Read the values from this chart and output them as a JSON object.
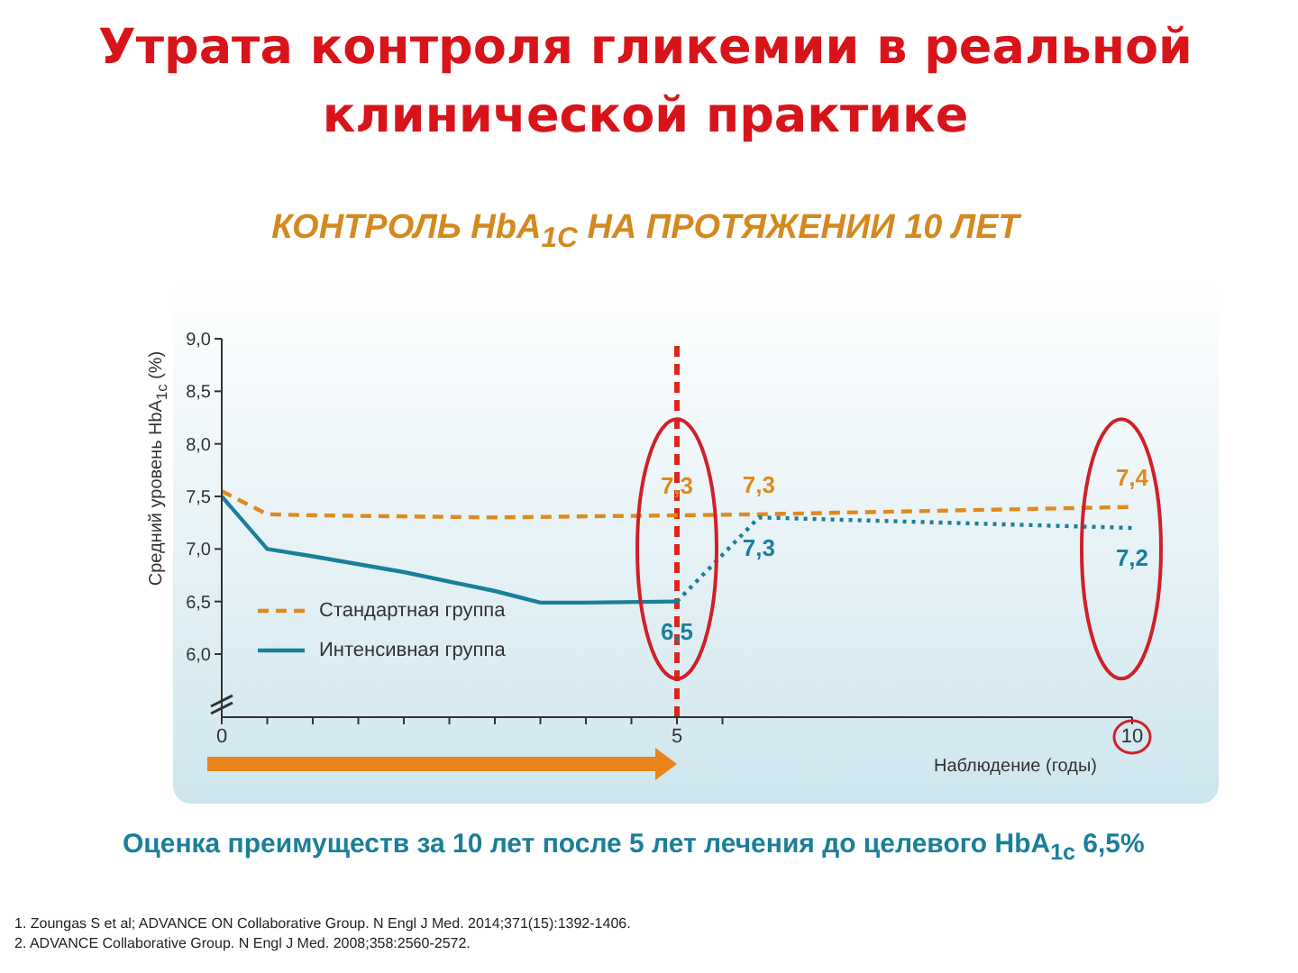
{
  "chart_data": {
    "type": "line",
    "title": "Утрата контроля гликемии в реальной клинической практике",
    "subtitle": "КОНТРОЛЬ HbA$_{1C}$ НА ПРОТЯЖЕНИИ 10 ЛЕТ",
    "xlabel": "Наблюдение (годы)",
    "ylabel": "Средний уровень HbA$_{1c}$ (%)",
    "xlim": [
      0,
      10
    ],
    "xticks": [
      0,
      {
        "value": 0.5,
        "label": null
      },
      {
        "value": 1,
        "label": null
      },
      {
        "value": 1.5,
        "label": null
      },
      {
        "value": 2,
        "label": null
      },
      {
        "value": 2.5,
        "label": null
      },
      {
        "value": 3,
        "label": null
      },
      {
        "value": 3.5,
        "label": null
      },
      {
        "value": 4,
        "label": null
      },
      {
        "value": 4.5,
        "label": null
      },
      5,
      {
        "value": 5.5,
        "label": null
      },
      10
    ],
    "ylim": [
      5.4,
      9.0
    ],
    "yticks": [
      {
        "value": 6,
        "label": "6,0"
      },
      {
        "value": 6.5,
        "label": "6,5"
      },
      {
        "value": 7,
        "label": "7,0"
      },
      {
        "value": 7.5,
        "label": "7,5"
      },
      {
        "value": 8,
        "label": "8,0"
      },
      {
        "value": 8.5,
        "label": "8,5"
      },
      {
        "value": 9,
        "label": "9,0"
      }
    ],
    "series": [
      {
        "name": "Стандартная группа",
        "color": "#e08a1e",
        "line_style": "dashed",
        "x": [
          0,
          0.5,
          1,
          2,
          3,
          4,
          5,
          5.9,
          10
        ],
        "values": [
          7.55,
          7.33,
          7.32,
          7.31,
          7.3,
          7.31,
          7.32,
          7.33,
          7.4
        ],
        "value_labels": [
          null,
          null,
          null,
          null,
          null,
          null,
          "7,3",
          "7,3",
          "7,4"
        ]
      },
      {
        "name": "Интенсивная группа",
        "color": "#1a7f9a",
        "line_style": "solid",
        "x": [
          0,
          0.5,
          1,
          2,
          3,
          3.5,
          4,
          5
        ],
        "values": [
          7.5,
          7.0,
          6.93,
          6.78,
          6.6,
          6.49,
          6.49,
          6.5
        ],
        "value_labels": [
          null,
          null,
          null,
          null,
          null,
          null,
          null,
          "6,5"
        ]
      },
      {
        "color": "#1a7f9a",
        "line_style": "dotted",
        "x": [
          5,
          5.9,
          10
        ],
        "values": [
          6.5,
          7.3,
          7.2
        ],
        "value_labels": [
          null,
          "7,3",
          "7,2"
        ]
      }
    ],
    "ref_lines": [
      {
        "axis": "x",
        "value": 5,
        "color": "#e0241b",
        "line_style": "dashed"
      }
    ],
    "marker": "none",
    "grid": false,
    "legend": "bottom left",
    "annotations": [
      "Оценка преимуществ за 10 лет после 5 лет лечения до целевого HbA$_{1c}$ 6,5%",
      "1. Zoungas S et al; ADVANCE ON Collaborative Group. N Engl J Med. 2014;371(15):1392-1406.",
      "2. ADVANCE Collaborative Group. N Engl J Med. 2008;358:2560-2572."
    ]
  }
}
